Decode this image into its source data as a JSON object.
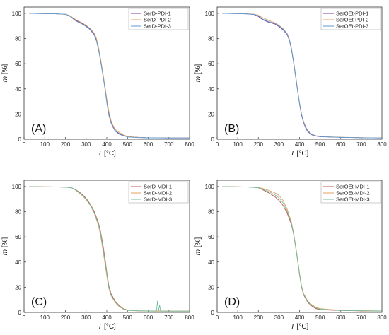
{
  "chart_data": [
    {
      "type": "line",
      "panel_label": "(A)",
      "xlabel_italic": "T",
      "xlabel_unit": " [°C]",
      "ylabel_italic": "m",
      "ylabel_unit": " [%]",
      "xlim": [
        0,
        800
      ],
      "ylim": [
        0,
        105
      ],
      "xticks": [
        0,
        100,
        200,
        300,
        400,
        500,
        600,
        700,
        800
      ],
      "yticks": [
        0,
        20,
        40,
        60,
        80,
        100
      ],
      "grid": false,
      "legend_position": "top-right",
      "series": [
        {
          "name": "SerD-PDI-1",
          "color": "#7b3fa0",
          "x": [
            25,
            100,
            150,
            200,
            220,
            250,
            280,
            300,
            320,
            340,
            350,
            360,
            370,
            380,
            390,
            400,
            410,
            420,
            430,
            440,
            460,
            480,
            500,
            550,
            600,
            700,
            800
          ],
          "y": [
            100,
            99.8,
            99.6,
            99.2,
            98,
            94.5,
            92,
            90,
            87.5,
            83,
            79,
            72,
            63,
            53,
            42,
            30,
            20,
            14,
            10,
            7,
            4.5,
            3,
            2,
            1.5,
            1.2,
            1,
            1
          ]
        },
        {
          "name": "SerD-PDI-2",
          "color": "#e0a060",
          "x": [
            25,
            100,
            150,
            200,
            220,
            250,
            280,
            300,
            320,
            340,
            350,
            360,
            370,
            380,
            390,
            400,
            410,
            420,
            430,
            440,
            460,
            480,
            500,
            550,
            600,
            700,
            800
          ],
          "y": [
            100,
            99.8,
            99.6,
            99.3,
            98.3,
            95,
            92.5,
            90.5,
            88,
            84,
            80,
            73,
            64,
            54,
            43,
            32,
            22,
            15,
            11,
            8,
            5.5,
            3.5,
            2.2,
            1.5,
            1.2,
            1,
            1
          ]
        },
        {
          "name": "SerD-PDI-3",
          "color": "#5b9bd5",
          "x": [
            25,
            100,
            150,
            200,
            220,
            250,
            280,
            300,
            320,
            340,
            350,
            360,
            370,
            380,
            390,
            400,
            410,
            420,
            430,
            440,
            460,
            480,
            500,
            550,
            600,
            700,
            800
          ],
          "y": [
            100,
            99.8,
            99.6,
            99.2,
            97.8,
            94,
            91.5,
            89.5,
            87,
            82.5,
            78,
            71,
            62,
            52,
            41,
            29,
            19,
            13,
            9.5,
            6.5,
            4,
            2.8,
            1.8,
            1.3,
            1.1,
            1,
            1
          ]
        }
      ]
    },
    {
      "type": "line",
      "panel_label": "(B)",
      "xlabel_italic": "T",
      "xlabel_unit": " [°C]",
      "ylabel_italic": "m",
      "ylabel_unit": " [%]",
      "xlim": [
        0,
        800
      ],
      "ylim": [
        0,
        105
      ],
      "xticks": [
        0,
        100,
        200,
        300,
        400,
        500,
        600,
        700,
        800
      ],
      "yticks": [
        0,
        20,
        40,
        60,
        80,
        100
      ],
      "grid": false,
      "legend_position": "top-right",
      "series": [
        {
          "name": "SerOEt-PDI-1",
          "color": "#7b3fa0",
          "x": [
            25,
            100,
            150,
            180,
            200,
            220,
            250,
            280,
            300,
            320,
            340,
            350,
            360,
            370,
            380,
            390,
            400,
            410,
            420,
            430,
            440,
            460,
            480,
            500,
            600,
            700,
            800
          ],
          "y": [
            100,
            99.8,
            99.5,
            99,
            97.5,
            95,
            93,
            91.5,
            89.5,
            87,
            83,
            79,
            72,
            62,
            51,
            39,
            28,
            19,
            13,
            9,
            6,
            3.5,
            2.5,
            2,
            1.5,
            1.2,
            1
          ]
        },
        {
          "name": "SerOEt-PDI-2",
          "color": "#e0a060",
          "x": [
            25,
            100,
            150,
            180,
            200,
            220,
            250,
            280,
            300,
            320,
            340,
            350,
            360,
            370,
            380,
            390,
            400,
            410,
            420,
            430,
            440,
            460,
            480,
            500,
            600,
            700,
            800
          ],
          "y": [
            100,
            99.8,
            99.6,
            99.3,
            98.5,
            96.5,
            94.5,
            92.5,
            90.5,
            88,
            84,
            80,
            73,
            63,
            52,
            40,
            29,
            20,
            14,
            10,
            7,
            4,
            2.8,
            2.2,
            1.6,
            1.3,
            1
          ]
        },
        {
          "name": "SerOEt-PDI-3",
          "color": "#5b9bd5",
          "x": [
            25,
            100,
            150,
            180,
            200,
            220,
            250,
            280,
            300,
            320,
            340,
            350,
            360,
            370,
            380,
            390,
            400,
            410,
            420,
            430,
            440,
            460,
            480,
            500,
            600,
            700,
            800
          ],
          "y": [
            100,
            99.8,
            99.5,
            99.1,
            98,
            95.5,
            93.5,
            92,
            90,
            87.5,
            83.5,
            79.5,
            72.5,
            62.5,
            51.5,
            39.5,
            28.5,
            19.5,
            13.5,
            9.5,
            6.5,
            3.8,
            2.6,
            2.1,
            1.5,
            1.2,
            1
          ]
        }
      ]
    },
    {
      "type": "line",
      "panel_label": "(C)",
      "xlabel_italic": "T",
      "xlabel_unit": " [°C]",
      "ylabel_italic": "m",
      "ylabel_unit": " [%]",
      "xlim": [
        0,
        800
      ],
      "ylim": [
        0,
        105
      ],
      "xticks": [
        0,
        100,
        200,
        300,
        400,
        500,
        600,
        700,
        800
      ],
      "yticks": [
        0,
        20,
        40,
        60,
        80,
        100
      ],
      "grid": false,
      "legend_position": "top-right",
      "series": [
        {
          "name": "SerD-MDI-1",
          "color": "#c0504d",
          "x": [
            25,
            100,
            150,
            200,
            230,
            250,
            280,
            300,
            320,
            340,
            360,
            370,
            380,
            390,
            400,
            410,
            420,
            440,
            460,
            480,
            500,
            550,
            600,
            700,
            800
          ],
          "y": [
            100,
            99.8,
            99.7,
            99.5,
            99,
            97.5,
            94,
            90.5,
            86,
            80,
            71,
            64,
            55,
            44,
            32,
            21,
            15,
            9,
            5.5,
            3,
            1.8,
            1.3,
            1.1,
            1,
            1
          ]
        },
        {
          "name": "SerD-MDI-2",
          "color": "#e0a060",
          "x": [
            25,
            100,
            150,
            200,
            230,
            250,
            280,
            300,
            320,
            340,
            360,
            370,
            380,
            390,
            400,
            410,
            420,
            440,
            460,
            480,
            500,
            550,
            600,
            700,
            800
          ],
          "y": [
            100,
            99.8,
            99.7,
            99.5,
            99,
            97,
            93,
            89.5,
            85,
            78.5,
            69,
            61,
            51,
            40,
            29,
            19,
            13.5,
            8,
            4.5,
            2.5,
            1.6,
            1.2,
            1,
            1,
            1
          ]
        },
        {
          "name": "SerD-MDI-3",
          "color": "#70c0a0",
          "x": [
            25,
            100,
            150,
            200,
            230,
            250,
            280,
            300,
            320,
            340,
            360,
            370,
            380,
            390,
            400,
            410,
            420,
            440,
            460,
            480,
            500,
            550,
            600,
            640,
            645,
            650,
            655,
            660,
            700,
            800
          ],
          "y": [
            100,
            99.8,
            99.7,
            99.5,
            99,
            97.2,
            93.5,
            90,
            85.5,
            79,
            70,
            63,
            53,
            42,
            31,
            20,
            14,
            8.5,
            5,
            2.8,
            1.7,
            1.3,
            1.1,
            1,
            9,
            1,
            6,
            1,
            1,
            1
          ]
        }
      ]
    },
    {
      "type": "line",
      "panel_label": "(D)",
      "xlabel_italic": "T",
      "xlabel_unit": " [°C]",
      "ylabel_italic": "m",
      "ylabel_unit": " [%]",
      "xlim": [
        0,
        800
      ],
      "ylim": [
        0,
        105
      ],
      "xticks": [
        0,
        100,
        200,
        300,
        400,
        500,
        600,
        700,
        800
      ],
      "yticks": [
        0,
        20,
        40,
        60,
        80,
        100
      ],
      "grid": false,
      "legend_position": "top-right",
      "series": [
        {
          "name": "SerOEt-MDI-1",
          "color": "#c0504d",
          "x": [
            25,
            100,
            150,
            200,
            220,
            250,
            280,
            300,
            320,
            340,
            360,
            370,
            380,
            390,
            400,
            410,
            420,
            440,
            460,
            480,
            500,
            550,
            600,
            700,
            800
          ],
          "y": [
            100,
            99.8,
            99.6,
            99,
            97.5,
            95,
            92,
            89,
            85,
            79,
            70,
            63,
            53,
            42,
            30,
            20,
            14,
            8,
            5,
            3,
            2.2,
            1.8,
            1.5,
            1.2,
            1
          ]
        },
        {
          "name": "SerOEt-MDI-2",
          "color": "#e0a060",
          "x": [
            25,
            100,
            150,
            200,
            220,
            250,
            280,
            300,
            320,
            340,
            360,
            370,
            380,
            390,
            400,
            410,
            420,
            440,
            460,
            480,
            500,
            550,
            600,
            700,
            800
          ],
          "y": [
            100,
            99.8,
            99.6,
            99.2,
            98.5,
            97,
            95,
            93,
            89,
            82,
            72,
            64,
            54,
            43,
            31,
            21,
            15,
            9,
            6,
            4,
            3,
            2.3,
            1.8,
            1.4,
            1.2
          ]
        },
        {
          "name": "SerOEt-MDI-3",
          "color": "#70c0a0",
          "x": [
            25,
            100,
            150,
            200,
            220,
            250,
            280,
            300,
            320,
            340,
            360,
            370,
            380,
            390,
            400,
            410,
            420,
            440,
            460,
            480,
            500,
            550,
            600,
            700,
            800
          ],
          "y": [
            100,
            99.8,
            99.6,
            99.1,
            98,
            96,
            93.5,
            91,
            87,
            80.5,
            71,
            63.5,
            53.5,
            42.5,
            30.5,
            20.5,
            14.5,
            8.5,
            5.5,
            3.5,
            2.6,
            2,
            1.6,
            1.3,
            1.1
          ]
        }
      ]
    }
  ]
}
